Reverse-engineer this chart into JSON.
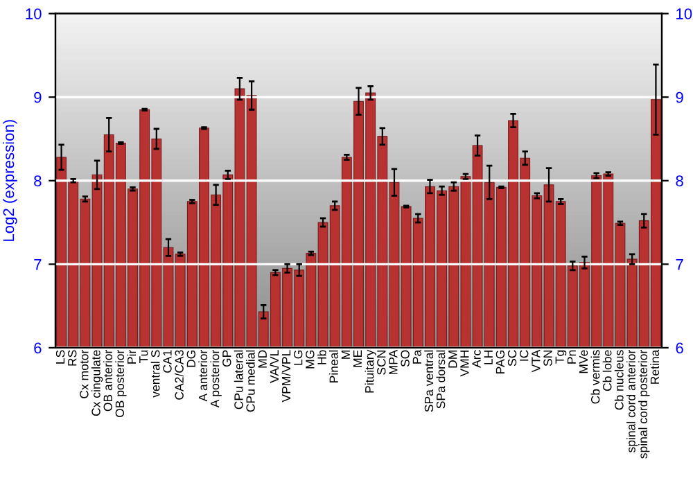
{
  "chart_data": {
    "type": "bar",
    "ylabel": "Log2 (expression)",
    "categories": [
      "LS",
      "RS",
      "Cx motor",
      "Cx cingulate",
      "OB anterior",
      "OB posterior",
      "Pir",
      "Tu",
      "ventral S",
      "CA1",
      "CA2/CA3",
      "DG",
      "A anterior",
      "A posterior",
      "GP",
      "CPu lateral",
      "CPu medial",
      "MD",
      "VA/VL",
      "VPM/VPL",
      "LG",
      "MG",
      "Hb",
      "Pineal",
      "M",
      "ME",
      "Pituitary",
      "SCN",
      "MPA",
      "SO",
      "Pa",
      "SPa ventral",
      "SPa dorsal",
      "DM",
      "VMH",
      "Arc",
      "LH",
      "PAG",
      "SC",
      "IC",
      "VTA",
      "SN",
      "Tg",
      "Pn",
      "MVe",
      "Cb vermis",
      "Cb lobe",
      "Cb nucleus",
      "spinal cord anterior",
      "spinal cord posterior",
      "Retina"
    ],
    "values": [
      8.28,
      8.0,
      7.78,
      8.07,
      8.55,
      8.45,
      7.9,
      8.85,
      8.5,
      7.2,
      7.12,
      7.75,
      8.63,
      7.83,
      8.07,
      9.1,
      9.02,
      6.43,
      6.9,
      6.95,
      6.93,
      7.13,
      7.5,
      7.7,
      8.28,
      8.95,
      9.05,
      8.53,
      7.98,
      7.69,
      7.55,
      7.93,
      7.88,
      7.93,
      8.05,
      8.42,
      7.98,
      7.92,
      8.72,
      8.27,
      7.82,
      7.95,
      7.75,
      6.98,
      7.02,
      8.06,
      8.08,
      7.49,
      7.06,
      7.52,
      8.97
    ],
    "errors": [
      0.15,
      0.02,
      0.03,
      0.17,
      0.2,
      0.01,
      0.02,
      0.01,
      0.12,
      0.1,
      0.02,
      0.02,
      0.01,
      0.12,
      0.05,
      0.13,
      0.17,
      0.08,
      0.03,
      0.05,
      0.07,
      0.02,
      0.05,
      0.05,
      0.03,
      0.16,
      0.08,
      0.1,
      0.16,
      0.01,
      0.05,
      0.08,
      0.05,
      0.05,
      0.03,
      0.12,
      0.2,
      0.01,
      0.08,
      0.08,
      0.03,
      0.2,
      0.03,
      0.05,
      0.07,
      0.03,
      0.02,
      0.02,
      0.06,
      0.08,
      0.42
    ],
    "color": "#b83232",
    "ylim": [
      6,
      10
    ],
    "yticks": [
      6,
      7,
      8,
      9,
      10
    ],
    "y2lim": [
      6,
      10
    ],
    "y2ticks": [
      6,
      7,
      8,
      9,
      10
    ],
    "grid": "y"
  }
}
